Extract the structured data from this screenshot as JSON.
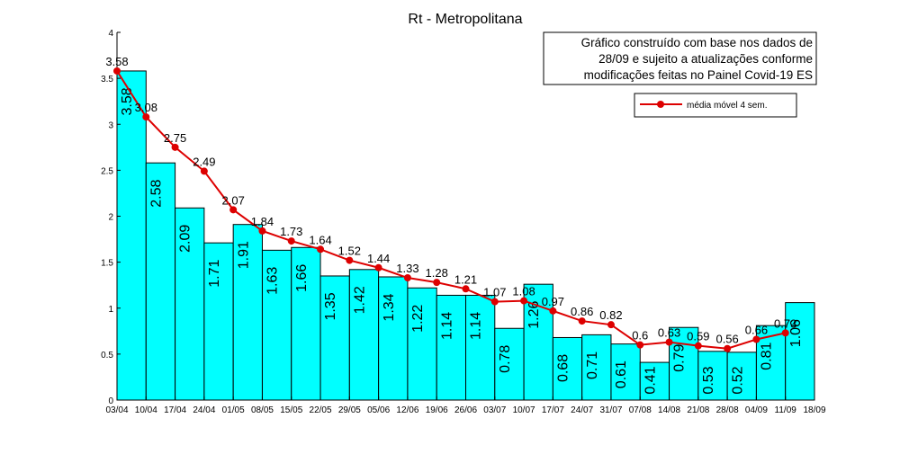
{
  "chart_data": {
    "type": "bar",
    "title": "Rt - Metropolitana",
    "note_lines": [
      "Gráfico construído com base nos dados de",
      "28/09 e sujeito a atualizações conforme",
      "modificações feitas no Painel Covid-19 ES"
    ],
    "x_tick_labels": [
      "03/04",
      "10/04",
      "17/04",
      "24/04",
      "01/05",
      "08/05",
      "15/05",
      "22/05",
      "29/05",
      "05/06",
      "12/06",
      "19/06",
      "26/06",
      "03/07",
      "10/07",
      "17/07",
      "24/07",
      "31/07",
      "07/08",
      "14/08",
      "21/08",
      "28/08",
      "04/09",
      "11/09",
      "18/09"
    ],
    "y_tick_labels": [
      "0",
      "0.5",
      "1",
      "1.5",
      "2",
      "2.5",
      "3",
      "3.5",
      "4"
    ],
    "ylim": [
      0,
      4
    ],
    "grid": false,
    "legend_position": "top-right",
    "bar_color": "#00ffff",
    "line_color": "#dd0000",
    "series": [
      {
        "type": "bar",
        "values": [
          3.58,
          2.58,
          2.09,
          1.71,
          1.91,
          1.63,
          1.66,
          1.35,
          1.42,
          1.34,
          1.22,
          1.14,
          1.14,
          0.78,
          1.26,
          0.68,
          0.71,
          0.61,
          0.41,
          0.79,
          0.53,
          0.52,
          0.81,
          1.06
        ],
        "labels": [
          "3.58",
          "2.58",
          "2.09",
          "1.71",
          "1.91",
          "1.63",
          "1.66",
          "1.35",
          "1.42",
          "1.34",
          "1.22",
          "1.14",
          "1.14",
          "0.78",
          "1.26",
          "0.68",
          "0.71",
          "0.61",
          "0.41",
          "0.79",
          "0.53",
          "0.52",
          "0.81",
          "1.06"
        ]
      },
      {
        "type": "line",
        "name": "média móvel 4 sem.",
        "values": [
          3.58,
          3.08,
          2.75,
          2.49,
          2.07,
          1.84,
          1.73,
          1.64,
          1.52,
          1.44,
          1.33,
          1.28,
          1.21,
          1.07,
          1.08,
          0.97,
          0.86,
          0.82,
          0.6,
          0.63,
          0.59,
          0.56,
          0.66,
          0.73
        ],
        "labels": [
          "3.58",
          "3.08",
          "2.75",
          "2.49",
          "2.07",
          "1.84",
          "1.73",
          "1.64",
          "1.52",
          "1.44",
          "1.33",
          "1.28",
          "1.21",
          "1.07",
          "1.08",
          "0.97",
          "0.86",
          "0.82",
          "0.6",
          "0.63",
          "0.59",
          "0.56",
          "0.66",
          "0.73"
        ]
      }
    ]
  }
}
